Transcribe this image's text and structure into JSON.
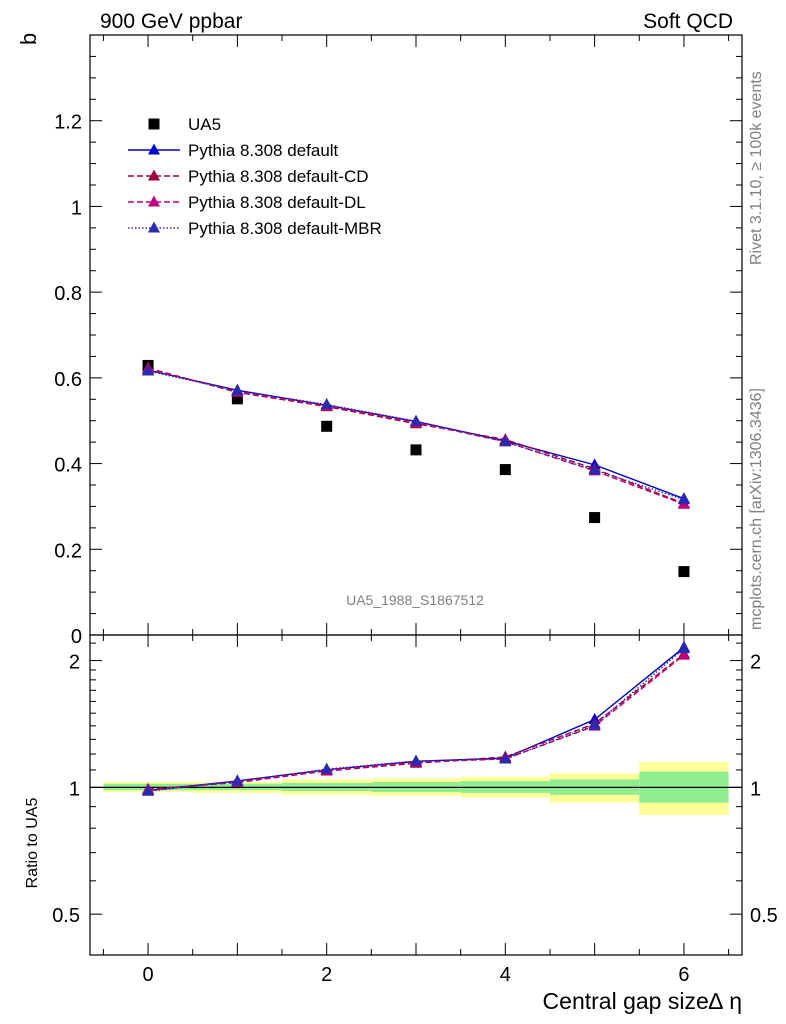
{
  "header": {
    "left": "900 GeV ppbar",
    "right": "Soft QCD"
  },
  "side_labels": {
    "top": "Rivet 3.1.10, ≥ 100k events",
    "bottom": "mcplots.cern.ch [arXiv:1306.3436]"
  },
  "watermark": "UA5_1988_S1867512",
  "chart_data": [
    {
      "type": "scatter",
      "ylabel": "b",
      "xlabel": "",
      "xlim": [
        -0.65,
        6.65
      ],
      "ylim": [
        0,
        1.4
      ],
      "yticks": [
        0,
        0.2,
        0.4,
        0.6,
        0.8,
        1,
        1.2
      ],
      "ytick_labels": [
        "0",
        "0.2",
        "0.4",
        "0.6",
        "0.8",
        "1",
        "1.2"
      ],
      "legend_position": "top-left",
      "series": [
        {
          "name": "UA5",
          "color": "#000000",
          "marker": "square",
          "line": "none",
          "x": [
            0,
            1,
            2,
            3,
            4,
            5,
            6
          ],
          "y": [
            0.629,
            0.551,
            0.487,
            0.432,
            0.386,
            0.274,
            0.148
          ]
        },
        {
          "name": "Pythia 8.308 default",
          "color": "#0000d0",
          "marker": "triangle",
          "line": "solid",
          "x": [
            0,
            1,
            2,
            3,
            4,
            5,
            6
          ],
          "y": [
            0.618,
            0.571,
            0.536,
            0.498,
            0.453,
            0.397,
            0.318
          ]
        },
        {
          "name": "Pythia 8.308 default-CD",
          "color": "#a0003c",
          "marker": "triangle",
          "line": "dashed",
          "x": [
            0,
            1,
            2,
            3,
            4,
            5,
            6
          ],
          "y": [
            0.623,
            0.566,
            0.533,
            0.493,
            0.456,
            0.388,
            0.307
          ]
        },
        {
          "name": "Pythia 8.308 default-DL",
          "color": "#c0007a",
          "marker": "triangle",
          "line": "dashed",
          "x": [
            0,
            1,
            2,
            3,
            4,
            5,
            6
          ],
          "y": [
            0.62,
            0.568,
            0.535,
            0.496,
            0.451,
            0.383,
            0.305
          ]
        },
        {
          "name": "Pythia 8.308 default-MBR",
          "color": "#2a2ab0",
          "marker": "triangle",
          "line": "dotted",
          "x": [
            0,
            1,
            2,
            3,
            4,
            5,
            6
          ],
          "y": [
            0.616,
            0.57,
            0.538,
            0.499,
            0.451,
            0.385,
            0.316
          ]
        }
      ]
    },
    {
      "type": "line",
      "ylabel": "Ratio to UA5",
      "xlabel": "Central gap size∆ η",
      "xlim": [
        -0.65,
        6.65
      ],
      "ylim": [
        0.4,
        2.3
      ],
      "log_y": true,
      "yticks": [
        0.5,
        1,
        2
      ],
      "ytick_labels": [
        "0.5",
        "1",
        "2"
      ],
      "xticks": [
        0,
        2,
        4,
        6
      ],
      "xtick_labels": [
        "0",
        "2",
        "4",
        "6"
      ],
      "uncertainty_bands": {
        "x": [
          0,
          1,
          2,
          3,
          4,
          5,
          6
        ],
        "stat_low": [
          0.985,
          0.985,
          0.98,
          0.975,
          0.97,
          0.96,
          0.92
        ],
        "stat_high": [
          1.02,
          1.02,
          1.025,
          1.03,
          1.035,
          1.045,
          1.09
        ],
        "total_low": [
          0.975,
          0.97,
          0.96,
          0.955,
          0.945,
          0.92,
          0.86
        ],
        "total_high": [
          1.03,
          1.03,
          1.045,
          1.05,
          1.06,
          1.08,
          1.15
        ],
        "stat_color": "#90ee90",
        "total_color": "#ffff99"
      },
      "series": [
        {
          "name": "Pythia 8.308 default",
          "color": "#0000d0",
          "line": "solid",
          "x": [
            0,
            1,
            2,
            3,
            4,
            5,
            6
          ],
          "y": [
            0.983,
            1.036,
            1.101,
            1.153,
            1.174,
            1.449,
            2.149
          ]
        },
        {
          "name": "Pythia 8.308 default-CD",
          "color": "#a0003c",
          "line": "dashed",
          "x": [
            0,
            1,
            2,
            3,
            4,
            5,
            6
          ],
          "y": [
            0.99,
            1.027,
            1.094,
            1.141,
            1.181,
            1.416,
            2.074
          ]
        },
        {
          "name": "Pythia 8.308 default-DL",
          "color": "#c0007a",
          "line": "dashed",
          "x": [
            0,
            1,
            2,
            3,
            4,
            5,
            6
          ],
          "y": [
            0.986,
            1.031,
            1.099,
            1.148,
            1.168,
            1.398,
            2.061
          ]
        },
        {
          "name": "Pythia 8.308 default-MBR",
          "color": "#2a2ab0",
          "line": "dotted",
          "x": [
            0,
            1,
            2,
            3,
            4,
            5,
            6
          ],
          "y": [
            0.979,
            1.034,
            1.105,
            1.155,
            1.168,
            1.405,
            2.135
          ]
        }
      ]
    }
  ]
}
